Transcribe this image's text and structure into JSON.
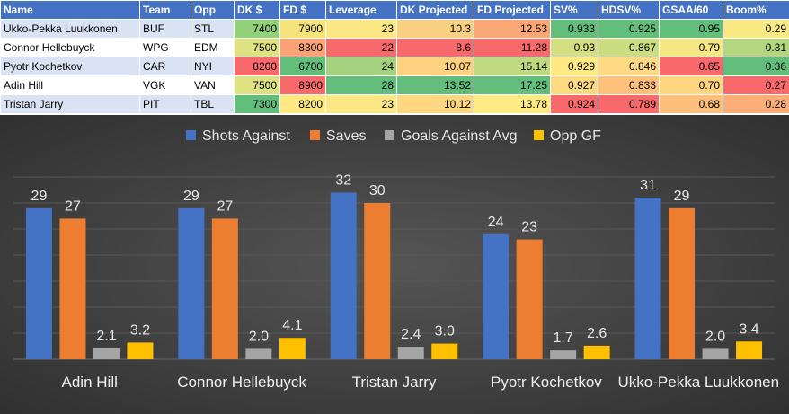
{
  "table": {
    "headers": [
      "Name",
      "Team",
      "Opp",
      "DK $",
      "FD $",
      "Leverage",
      "DK Projected",
      "FD Projected",
      "SV%",
      "HDSV%",
      "GSAA/60",
      "Boom%"
    ],
    "rows": [
      [
        "Ukko-Pekka Luukkonen",
        "BUF",
        "STL",
        "7400",
        "7900",
        "23",
        "10.3",
        "12.53",
        "0.933",
        "0.925",
        "0.95",
        "0.29"
      ],
      [
        "Connor Hellebuyck",
        "WPG",
        "EDM",
        "7500",
        "8300",
        "22",
        "8.6",
        "11.28",
        "0.93",
        "0.867",
        "0.79",
        "0.31"
      ],
      [
        "Pyotr Kochetkov",
        "CAR",
        "NYI",
        "8200",
        "6700",
        "24",
        "10.07",
        "15.14",
        "0.929",
        "0.846",
        "0.65",
        "0.36"
      ],
      [
        "Adin Hill",
        "VGK",
        "VAN",
        "7500",
        "8900",
        "28",
        "13.52",
        "17.25",
        "0.927",
        "0.833",
        "0.70",
        "0.27"
      ],
      [
        "Tristan Jarry",
        "PIT",
        "TBL",
        "7300",
        "8200",
        "23",
        "10.12",
        "13.78",
        "0.924",
        "0.789",
        "0.68",
        "0.28"
      ]
    ],
    "cell_colors": [
      [
        null,
        null,
        null,
        "#92d17a",
        "#f5e27a",
        "#fbe884",
        "#f9cf81",
        "#f9a777",
        "#63be7b",
        "#63be7b",
        "#63be7b",
        "#f8e984"
      ],
      [
        null,
        null,
        null,
        "#dfe282",
        "#fba277",
        "#f8696b",
        "#f8696b",
        "#f8696b",
        "#d3df82",
        "#cbdc81",
        "#f5e884",
        "#b5d680"
      ],
      [
        null,
        null,
        null,
        "#f8696b",
        "#63be7b",
        "#a6d27f",
        "#fed280",
        "#bfd981",
        "#fee983",
        "#ffd983",
        "#f8696b",
        "#63be7b"
      ],
      [
        null,
        null,
        null,
        "#dfe282",
        "#f8696b",
        "#63be7b",
        "#63be7b",
        "#63be7b",
        "#fedb81",
        "#ffc07c",
        "#ffd580",
        "#f8696b"
      ],
      [
        null,
        null,
        null,
        "#63be7b",
        "#fee983",
        "#fbe884",
        "#fdd881",
        "#ffeb84",
        "#f8696b",
        "#f8696b",
        "#fdc07c",
        "#fcae79"
      ]
    ]
  },
  "chart_data": {
    "type": "bar",
    "title": "",
    "xlabel": "",
    "ylabel": "",
    "ylim": [
      0,
      35
    ],
    "grid": true,
    "legend_position": "top",
    "background": "#404040",
    "categories": [
      "Adin Hill",
      "Connor Hellebuyck",
      "Tristan Jarry",
      "Pyotr Kochetkov",
      "Ukko-Pekka Luukkonen"
    ],
    "series": [
      {
        "name": "Shots Against",
        "color": "#4472c4",
        "values": [
          29,
          29,
          32,
          24,
          31
        ],
        "labels": [
          "29",
          "29",
          "32",
          "24",
          "31"
        ]
      },
      {
        "name": "Saves",
        "color": "#ed7d31",
        "values": [
          27,
          27,
          30,
          23,
          29
        ],
        "labels": [
          "27",
          "27",
          "30",
          "23",
          "29"
        ]
      },
      {
        "name": "Goals Against Avg",
        "color": "#a5a5a5",
        "values": [
          2.1,
          2.0,
          2.4,
          1.7,
          2.0
        ],
        "labels": [
          "2.1",
          "2.0",
          "2.4",
          "1.7",
          "2.0"
        ]
      },
      {
        "name": "Opp GF",
        "color": "#ffc000",
        "values": [
          3.2,
          4.1,
          3.0,
          2.6,
          3.4
        ],
        "labels": [
          "3.2",
          "4.1",
          "3.0",
          "2.6",
          "3.4"
        ]
      }
    ]
  }
}
